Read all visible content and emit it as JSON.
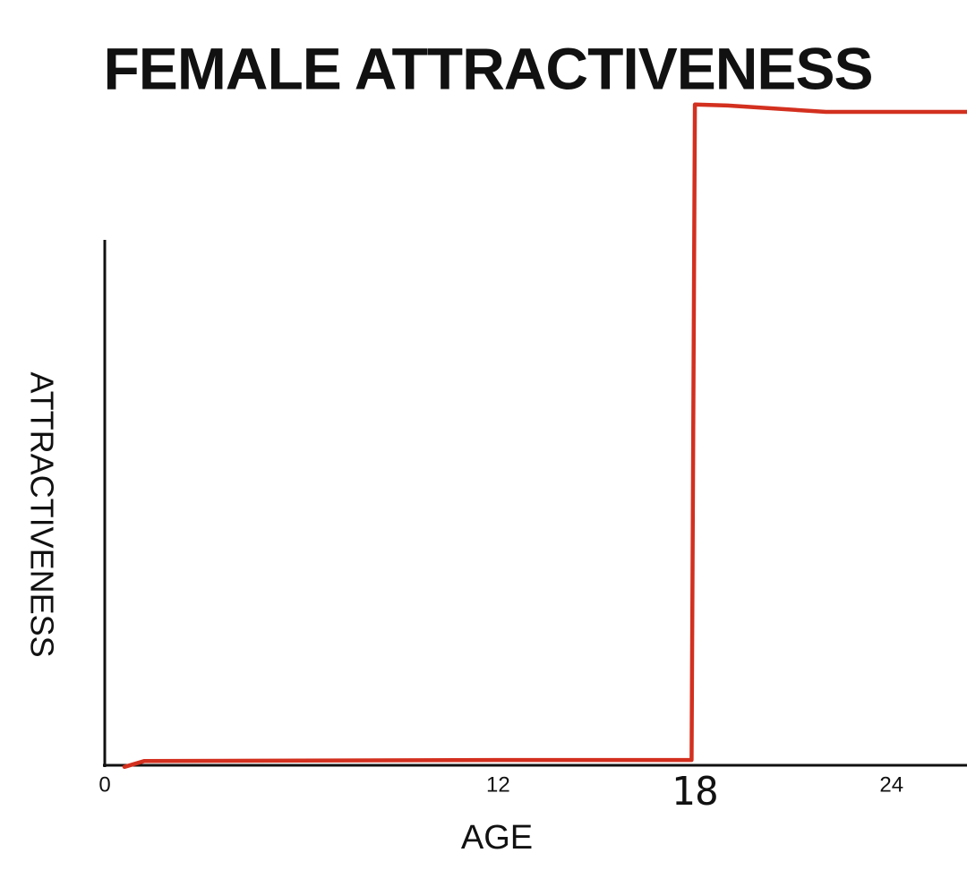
{
  "chart_data": {
    "type": "line",
    "title": "FEMALE ATTRACTIVENESS",
    "x_label": "AGE",
    "y_label": "ATTRACTIVENESS",
    "x": [
      0.6,
      1.2,
      6,
      12,
      17.9,
      18.0,
      19,
      22,
      26.3
    ],
    "series": [
      {
        "name": "Attractiveness",
        "color": "#d3301f",
        "values": [
          -0.3,
          0.8,
          0.9,
          1,
          1,
          125.7,
          125.5,
          124.3,
          124.3
        ]
      }
    ],
    "xlim": [
      0,
      26.3
    ],
    "ylim": [
      0,
      126
    ],
    "xticks": [
      0,
      12,
      24
    ],
    "handwritten_tick": 18
  }
}
